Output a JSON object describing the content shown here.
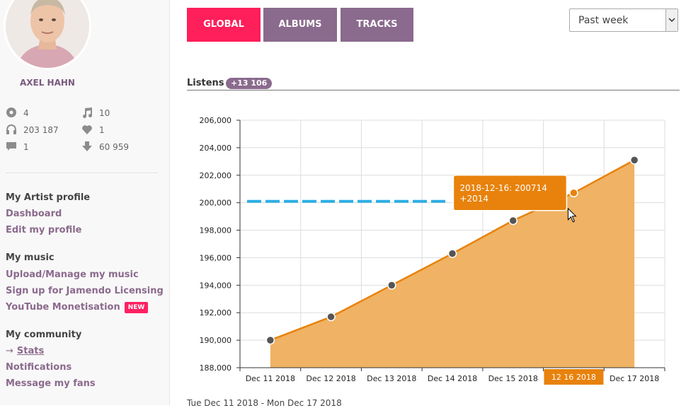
{
  "sidebar": {
    "artist_name": "AXEL HAHN",
    "stats": [
      {
        "icon": "disc-icon",
        "value": "4"
      },
      {
        "icon": "music-note-icon",
        "value": "10"
      },
      {
        "icon": "headphones-icon",
        "value": "203 187"
      },
      {
        "icon": "heart-icon",
        "value": "1"
      },
      {
        "icon": "comment-icon",
        "value": "1"
      },
      {
        "icon": "download-icon",
        "value": "60 959"
      }
    ],
    "sections": {
      "profile": {
        "title": "My Artist profile",
        "links": [
          "Dashboard",
          "Edit my profile"
        ]
      },
      "music": {
        "title": "My music",
        "links": [
          "Upload/Manage my music",
          "Sign up for Jamendo Licensing",
          "YouTube Monetisation"
        ],
        "badge": "NEW"
      },
      "community": {
        "title": "My community",
        "links": [
          "Stats",
          "Notifications",
          "Message my fans"
        ],
        "active_arrow": "→"
      }
    }
  },
  "tabs": [
    {
      "label": "GLOBAL",
      "color": "#ff1f5a",
      "active": true
    },
    {
      "label": "ALBUMS",
      "color": "#8a6a8d",
      "active": false
    },
    {
      "label": "TRACKS",
      "color": "#8a6a8d",
      "active": false
    }
  ],
  "period": {
    "selected": "Past week"
  },
  "listens": {
    "label": "Listens",
    "delta": "+13 106"
  },
  "chart_data": {
    "type": "area",
    "x": [
      "Dec 11 2018",
      "Dec 12 2018",
      "Dec 13 2018",
      "Dec 14 2018",
      "Dec 15 2018",
      "Dec 16 2018",
      "Dec 17 2018"
    ],
    "y": [
      190000,
      191700,
      194000,
      196300,
      198700,
      200714,
      203100
    ],
    "ylim": [
      188000,
      206000
    ],
    "yticks": [
      "188,000",
      "190,000",
      "192,000",
      "194,000",
      "196,000",
      "198,000",
      "200,000",
      "202,000",
      "204,000",
      "206,000"
    ],
    "reference_y": 200100,
    "grid": true,
    "line_color": "#e8820c",
    "fill_color": "#f0b264",
    "reference_color": "#2eaee4",
    "tooltip": {
      "line1": "2018-12-16: 200714",
      "line2": "+2014"
    },
    "hover_label": "12 16 2018"
  },
  "date_range": "Tue Dec 11 2018 - Mon Dec 17 2018"
}
